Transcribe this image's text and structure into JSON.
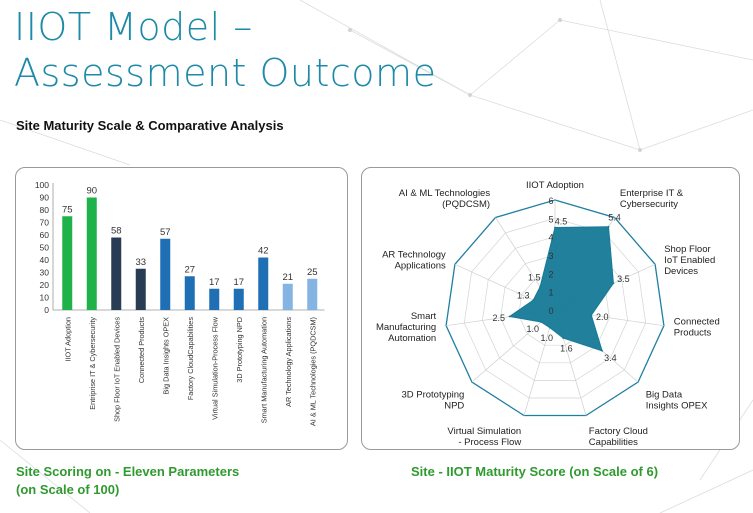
{
  "page": {
    "title_line1": "IIOT Model –",
    "title_line2": "Assessment Outcome",
    "subtitle": "Site Maturity Scale & Comparative Analysis",
    "bar_caption_line1": "Site Scoring on - Eleven Parameters",
    "bar_caption_line2": "(on Scale of 100)",
    "radar_caption": "Site - IIOT Maturity Score (on Scale of 6)"
  },
  "colors": {
    "title": "#1f8aa8",
    "caption": "#2f9a2f",
    "green": "#1fb24a",
    "navy": "#283c54",
    "blue": "#1f6fb5",
    "lightblue": "#84b4e2",
    "radar_fill": "#157a98",
    "radar_outline": "#1f7fa0"
  },
  "chart_data": [
    {
      "type": "bar",
      "categories": [
        "IIOT Adoption",
        "Entriprise IT & Cybersecurity",
        "Shop Floor IoT Enabled Devices",
        "Connected Products",
        "Big Data Insights OPEX",
        "Factory CloudCapabilities",
        "Virtual Simulation-Process Flow",
        "3D Prototyping NPD",
        "Smart Manufacturing Automation",
        "AR Technology Applications",
        "AI & ML Technologies (PQDCSM)"
      ],
      "values": [
        75,
        90,
        58,
        33,
        57,
        27,
        17,
        17,
        42,
        21,
        25
      ],
      "bar_colors": [
        "green",
        "green",
        "navy",
        "navy",
        "blue",
        "blue",
        "blue",
        "blue",
        "blue",
        "lightblue",
        "lightblue"
      ],
      "ylim": [
        0,
        100
      ],
      "yticks": [
        0,
        10,
        20,
        30,
        40,
        50,
        60,
        70,
        80,
        90,
        100
      ]
    },
    {
      "type": "radar",
      "axes": [
        "IIOT Adoption",
        "Enterprise IT & Cybersecurity",
        "Shop Floor IoT Enabled Devices",
        "Connected Products",
        "Big Data Insights OPEX",
        "Factory Cloud Capabilities",
        "Virtual Simulation - Process Flow",
        "3D Prototyping NPD",
        "Smart Manufacturing Automation",
        "AR Technology Applications",
        "AI & ML Technologies (PQDCSM)"
      ],
      "values": [
        4.5,
        5.4,
        3.5,
        2.0,
        3.4,
        1.6,
        1.0,
        1.0,
        2.5,
        1.3,
        1.5
      ],
      "value_labels": [
        "4.5",
        "5.4",
        "3.5",
        "2.0",
        "3.4",
        "1.6",
        "1.0",
        "1.0",
        "2.5",
        "1.3",
        "1.5"
      ],
      "rmax": 6,
      "rticks": [
        "0",
        "1",
        "2",
        "3",
        "4",
        "5",
        "6"
      ]
    }
  ]
}
